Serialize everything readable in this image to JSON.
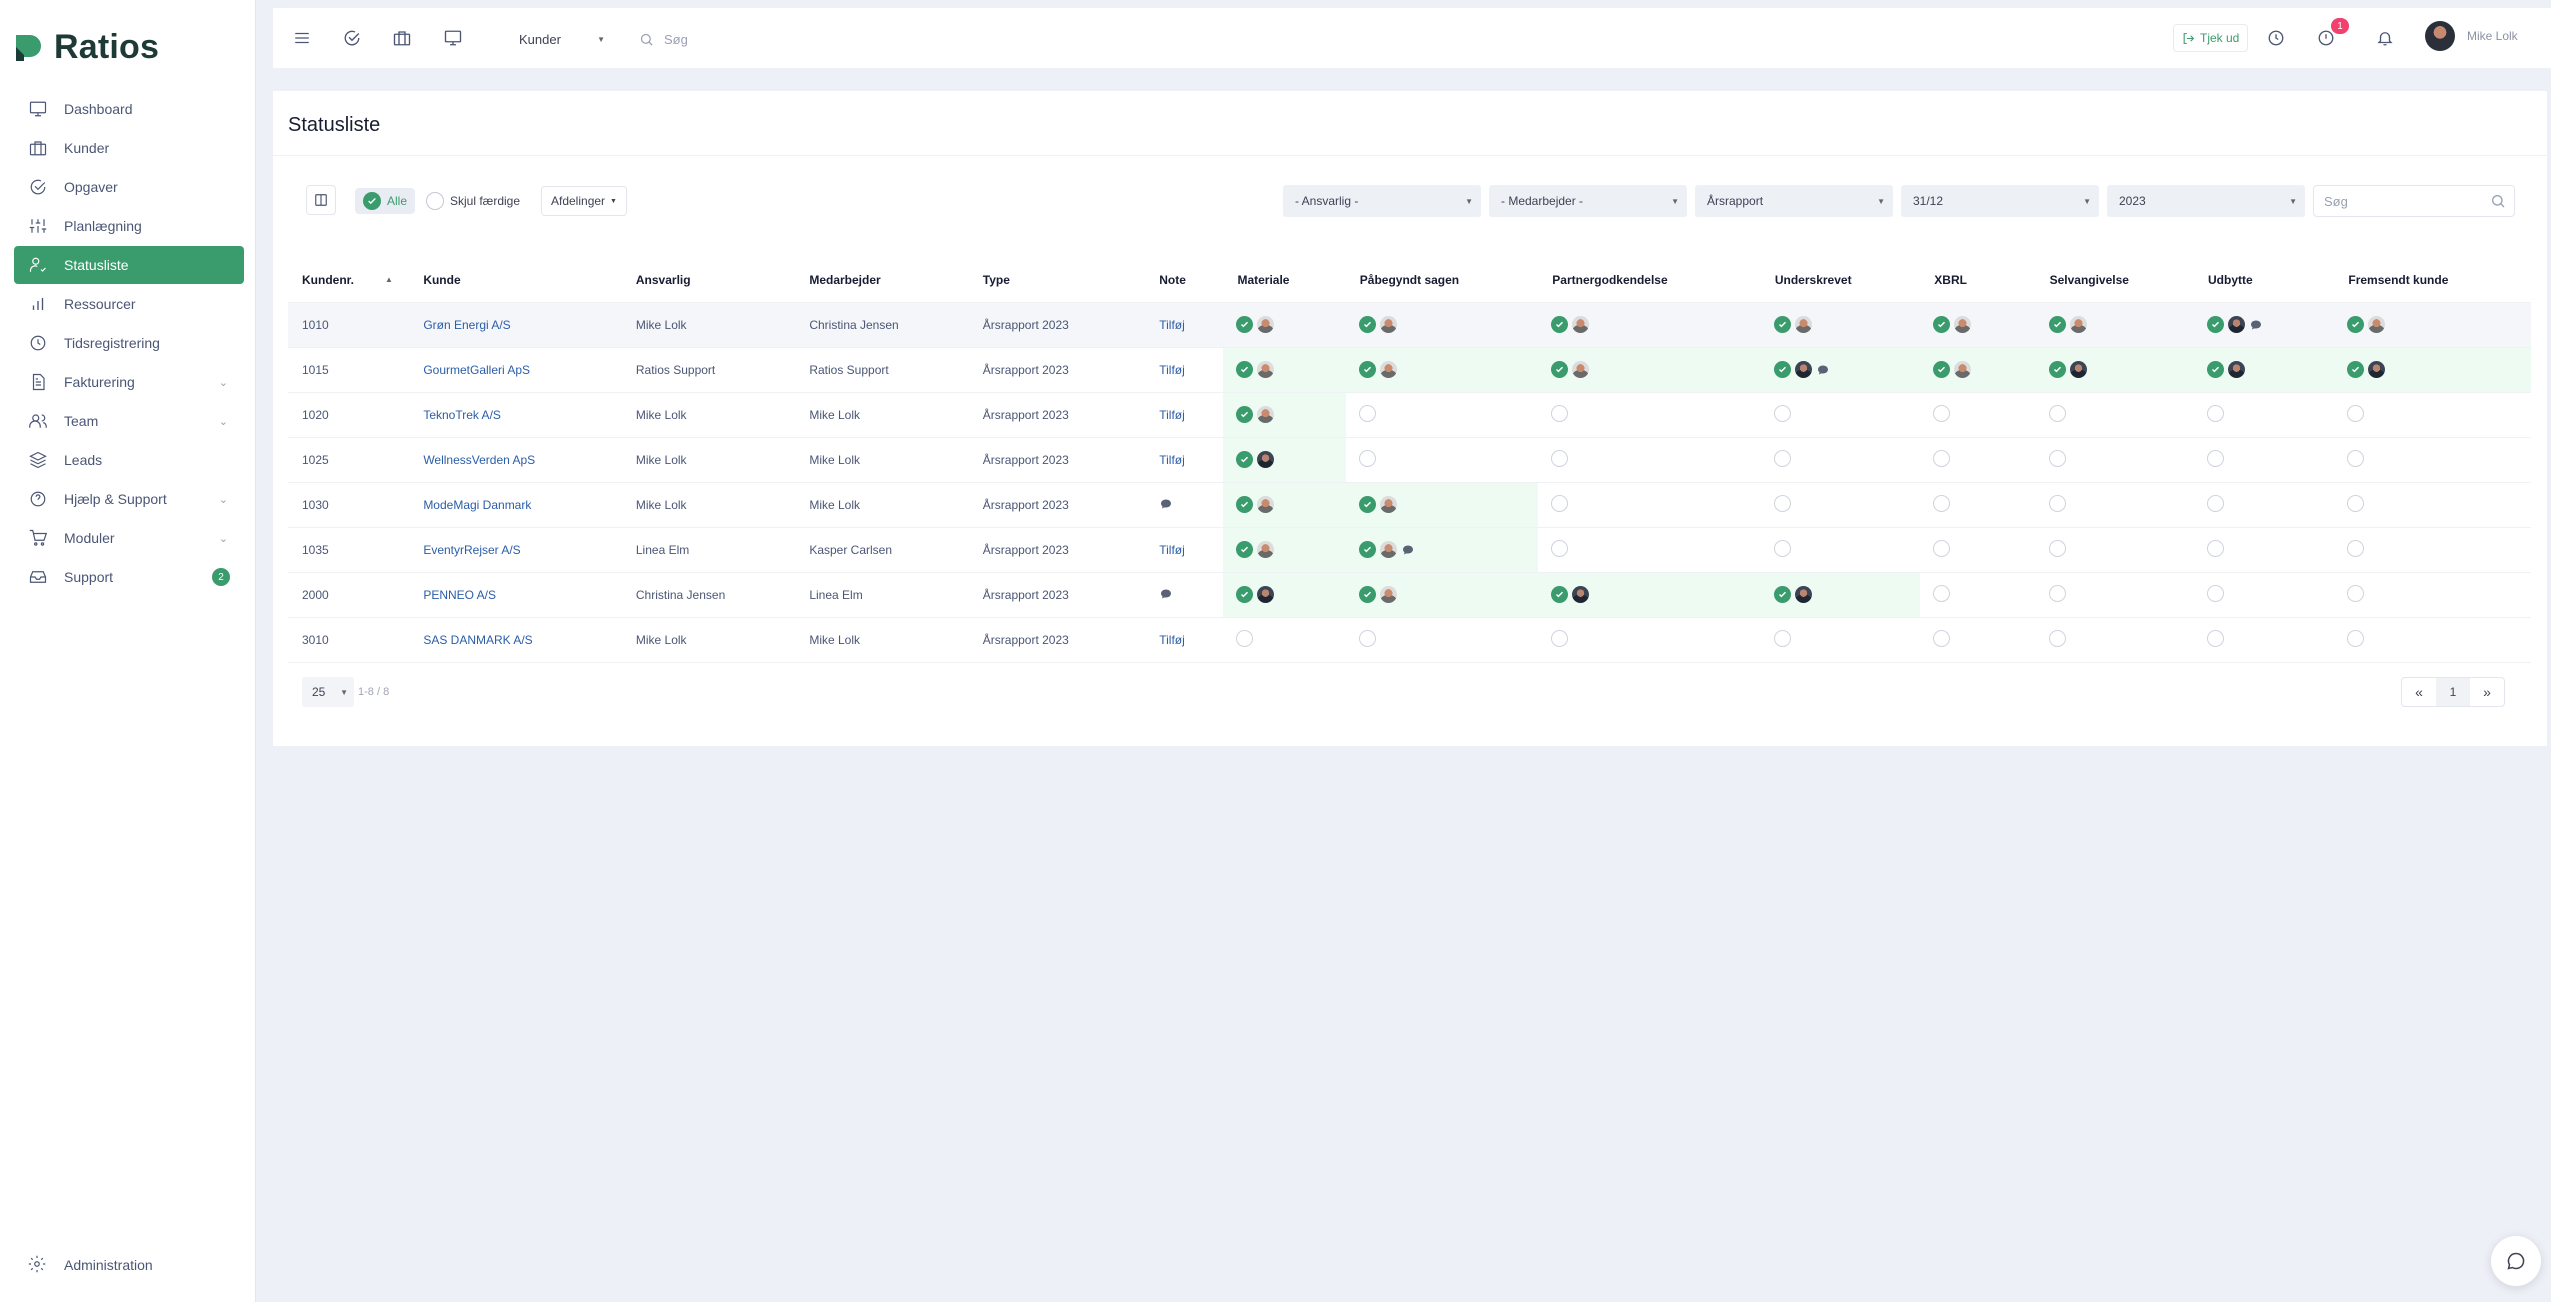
{
  "app": {
    "name": "Ratios"
  },
  "sidebar": {
    "items": [
      {
        "label": "Dashboard",
        "icon": "monitor-icon"
      },
      {
        "label": "Kunder",
        "icon": "briefcase-icon"
      },
      {
        "label": "Opgaver",
        "icon": "check-circle-icon"
      },
      {
        "label": "Planlægning",
        "icon": "sliders-icon"
      },
      {
        "label": "Statusliste",
        "icon": "user-check-icon",
        "active": true
      },
      {
        "label": "Ressourcer",
        "icon": "bar-chart-icon"
      },
      {
        "label": "Tidsregistrering",
        "icon": "clock-icon"
      },
      {
        "label": "Fakturering",
        "icon": "document-icon",
        "expandable": true
      },
      {
        "label": "Team",
        "icon": "users-icon",
        "expandable": true
      },
      {
        "label": "Leads",
        "icon": "layers-icon"
      },
      {
        "label": "Hjælp & Support",
        "icon": "help-circle-icon",
        "expandable": true
      },
      {
        "label": "Moduler",
        "icon": "cart-icon",
        "expandable": true
      },
      {
        "label": "Support",
        "icon": "inbox-icon",
        "count": "2"
      }
    ],
    "admin_label": "Administration"
  },
  "topbar": {
    "scope_select": "Kunder",
    "search_placeholder": "Søg",
    "checkout_label": "Tjek ud",
    "notification_count": "1",
    "user_name": "Mike Lolk"
  },
  "page": {
    "title": "Statusliste",
    "filters": {
      "all_label": "Alle",
      "hide_done_label": "Skjul færdige",
      "departments_label": "Afdelinger",
      "responsible": "- Ansvarlig -",
      "employee": "- Medarbejder -",
      "report_type": "Årsrapport",
      "date": "31/12",
      "year": "2023",
      "search_placeholder": "Søg"
    },
    "table": {
      "headers": [
        "Kundenr.",
        "Kunde",
        "Ansvarlig",
        "Medarbejder",
        "Type",
        "Note",
        "Materiale",
        "Påbegyndt sagen",
        "Partnergodkendelse",
        "Underskrevet",
        "XBRL",
        "Selvangivelse",
        "Udbytte",
        "Fremsendt kunde"
      ],
      "rows": [
        {
          "nr": "1010",
          "kunde": "Grøn Energi A/S",
          "ansvarlig": "Mike Lolk",
          "medarbejder": "Christina Jensen",
          "type": "Årsrapport 2023",
          "note": "Tilføj"
        },
        {
          "nr": "1015",
          "kunde": "GourmetGalleri ApS",
          "ansvarlig": "Ratios Support",
          "medarbejder": "Ratios Support",
          "type": "Årsrapport 2023",
          "note": "Tilføj"
        },
        {
          "nr": "1020",
          "kunde": "TeknoTrek A/S",
          "ansvarlig": "Mike Lolk",
          "medarbejder": "Mike Lolk",
          "type": "Årsrapport 2023",
          "note": "Tilføj"
        },
        {
          "nr": "1025",
          "kunde": "WellnessVerden ApS",
          "ansvarlig": "Mike Lolk",
          "medarbejder": "Mike Lolk",
          "type": "Årsrapport 2023",
          "note": "Tilføj"
        },
        {
          "nr": "1030",
          "kunde": "ModeMagi Danmark",
          "ansvarlig": "Mike Lolk",
          "medarbejder": "Mike Lolk",
          "type": "Årsrapport 2023",
          "note": ""
        },
        {
          "nr": "1035",
          "kunde": "EventyrRejser A/S",
          "ansvarlig": "Linea Elm",
          "medarbejder": "Kasper Carlsen",
          "type": "Årsrapport 2023",
          "note": "Tilføj"
        },
        {
          "nr": "2000",
          "kunde": "PENNEO A/S",
          "ansvarlig": "Christina Jensen",
          "medarbejder": "Linea Elm",
          "type": "Årsrapport 2023",
          "note": ""
        },
        {
          "nr": "3010",
          "kunde": "SAS DANMARK A/S",
          "ansvarlig": "Mike Lolk",
          "medarbejder": "Mike Lolk",
          "type": "Årsrapport 2023",
          "note": "Tilføj"
        }
      ]
    },
    "pagination": {
      "page_size": "25",
      "range": "1-8 / 8",
      "current_page": "1"
    }
  }
}
